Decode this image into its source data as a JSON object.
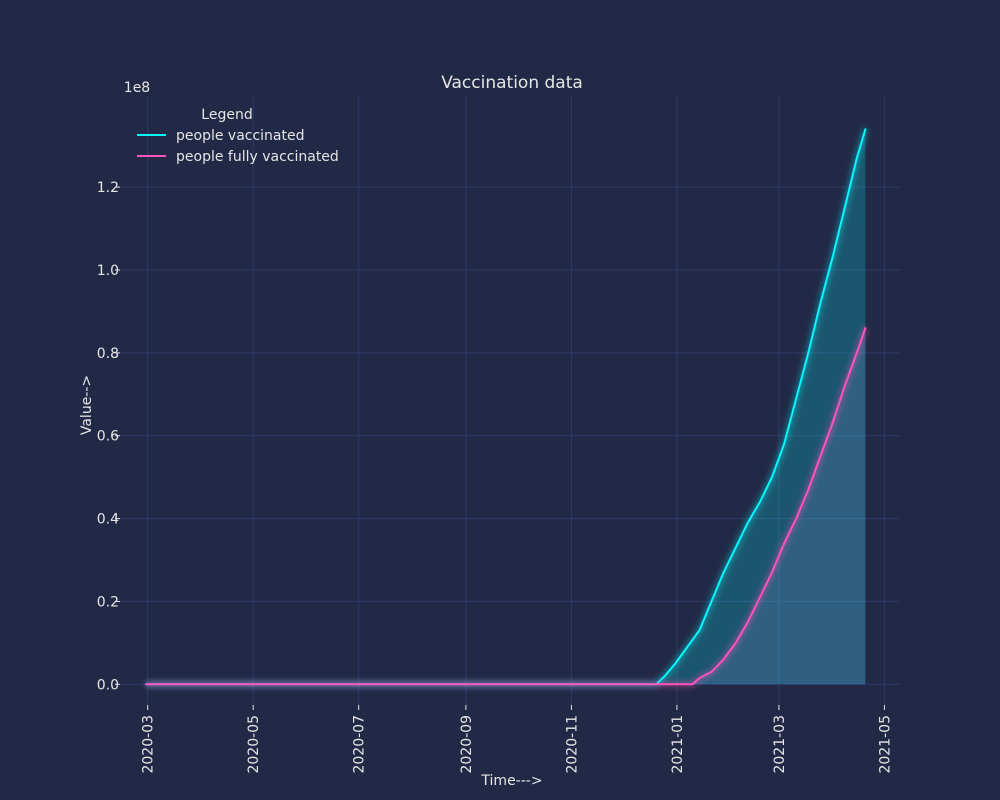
{
  "chart_data": {
    "type": "line",
    "title": "Vaccination data",
    "xlabel": "Time--->",
    "ylabel": "Value-->",
    "y_multiplier_label": "1e8",
    "x_tick_labels": [
      "2020-03",
      "2020-05",
      "2020-07",
      "2020-09",
      "2020-11",
      "2021-01",
      "2021-03",
      "2021-05"
    ],
    "y_tick_labels": [
      "0.0",
      "0.2",
      "0.4",
      "0.6",
      "0.8",
      "1.0",
      "1.2"
    ],
    "ylim": [
      -5000000,
      142000000
    ],
    "xlim": [
      "2020-02-14",
      "2021-05-10"
    ],
    "grid": true,
    "legend": {
      "title": "Legend",
      "placement": "top-left"
    },
    "series": [
      {
        "name": "people vaccinated",
        "color": "#08F7FE",
        "x": [
          "2020-02-29",
          "2020-12-20",
          "2020-12-25",
          "2020-12-31",
          "2021-01-07",
          "2021-01-14",
          "2021-01-21",
          "2021-01-28",
          "2021-02-04",
          "2021-02-11",
          "2021-02-18",
          "2021-02-25",
          "2021-03-04",
          "2021-03-11",
          "2021-03-18",
          "2021-03-25",
          "2021-04-01",
          "2021-04-08",
          "2021-04-15",
          "2021-04-20"
        ],
        "values": [
          0,
          0,
          2000000,
          5000000,
          9000000,
          13000000,
          20000000,
          27000000,
          33000000,
          39000000,
          44000000,
          50000000,
          58000000,
          69000000,
          80000000,
          92000000,
          103000000,
          115000000,
          127000000,
          134000000
        ]
      },
      {
        "name": "people fully vaccinated",
        "color": "#FE53BB",
        "x": [
          "2020-02-29",
          "2021-01-10",
          "2021-01-14",
          "2021-01-21",
          "2021-01-28",
          "2021-02-04",
          "2021-02-11",
          "2021-02-18",
          "2021-02-25",
          "2021-03-04",
          "2021-03-11",
          "2021-03-18",
          "2021-03-25",
          "2021-04-01",
          "2021-04-08",
          "2021-04-15",
          "2021-04-20"
        ],
        "values": [
          0,
          0,
          1500000,
          3000000,
          6000000,
          10000000,
          15000000,
          21000000,
          27000000,
          34000000,
          40000000,
          47000000,
          55000000,
          63000000,
          72000000,
          80000000,
          86000000
        ]
      }
    ]
  }
}
